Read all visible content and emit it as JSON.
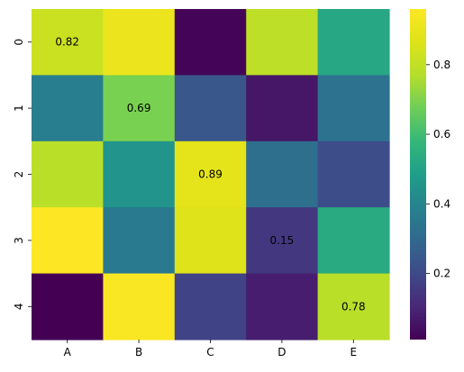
{
  "chart_data": {
    "type": "heatmap",
    "title": "",
    "xlabel": "",
    "ylabel": "",
    "x_categories": [
      "A",
      "B",
      "C",
      "D",
      "E"
    ],
    "y_categories": [
      "0",
      "1",
      "2",
      "3",
      "4"
    ],
    "values": [
      [
        0.82,
        0.91,
        0.02,
        0.79,
        0.52
      ],
      [
        0.37,
        0.69,
        0.24,
        0.06,
        0.33
      ],
      [
        0.78,
        0.45,
        0.89,
        0.32,
        0.21
      ],
      [
        0.96,
        0.36,
        0.87,
        0.15,
        0.53
      ],
      [
        0.01,
        0.95,
        0.18,
        0.08,
        0.78
      ]
    ],
    "annotated_cells": [
      {
        "row": 0,
        "col": 0,
        "label": "0.82"
      },
      {
        "row": 1,
        "col": 1,
        "label": "0.69"
      },
      {
        "row": 2,
        "col": 2,
        "label": "0.89"
      },
      {
        "row": 3,
        "col": 3,
        "label": "0.15"
      },
      {
        "row": 4,
        "col": 4,
        "label": "0.78"
      }
    ],
    "colormap": "viridis",
    "value_range": [
      0.01,
      0.96
    ],
    "colorbar": {
      "position": "right",
      "ticks": [
        0.2,
        0.4,
        0.6,
        0.8
      ],
      "tick_labels": [
        "0.2",
        "0.4",
        "0.6",
        "0.8"
      ]
    },
    "grid": false
  }
}
